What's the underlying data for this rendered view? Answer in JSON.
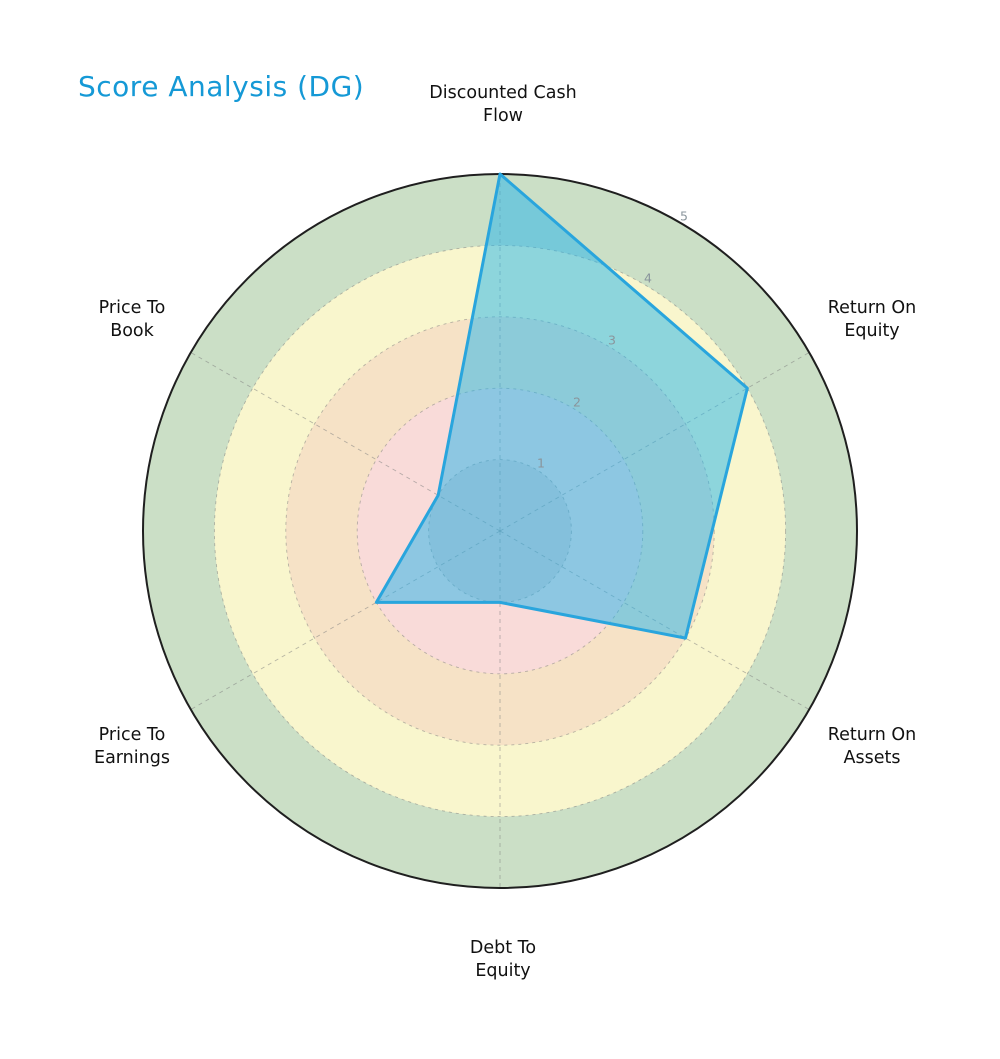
{
  "title": "Score Analysis (DG)",
  "title_color": "#1599d6",
  "chart_data": {
    "type": "radar",
    "series_name": "DG",
    "categories": [
      "Discounted Cash Flow",
      "Return On Equity",
      "Return On Assets",
      "Debt To Equity",
      "Price To Earnings",
      "Price To Book"
    ],
    "series": [
      {
        "name": "DG",
        "values": [
          5,
          4,
          3,
          1,
          2,
          1
        ],
        "stroke": "#29a5dd",
        "fill": "rgba(34,179,236,0.5)"
      }
    ],
    "rlim": [
      0,
      5
    ],
    "rticks": [
      "1",
      "2",
      "3",
      "4",
      "5"
    ],
    "rtick_color": "#8a959c",
    "grid_style": "dashed",
    "grid_color": "rgba(128,128,128,0.55)",
    "outer_ring_color": "#1f1f1f",
    "zones": [
      {
        "from": 0,
        "to": 5,
        "color": "#cbdfc6",
        "meaning": "4-5 band (green)"
      },
      {
        "from": 0,
        "to": 4,
        "color": "#f9f6cd",
        "meaning": "3-4 band (yellow)"
      },
      {
        "from": 0,
        "to": 3,
        "color": "#f6e2c6",
        "meaning": "2-3 band (orange)"
      },
      {
        "from": 0,
        "to": 2,
        "color": "#f9dbd9",
        "meaning": "0-2 band (pink)"
      }
    ],
    "inner_disk": {
      "to": 1,
      "color": "rgba(70,90,110,0.10)"
    },
    "axes_labels": [
      {
        "line1": "Discounted Cash",
        "line2": "Flow"
      },
      {
        "line1": "Return On",
        "line2": "Equity"
      },
      {
        "line1": "Return On",
        "line2": "Assets"
      },
      {
        "line1": "Debt To",
        "line2": "Equity"
      },
      {
        "line1": "Price To",
        "line2": "Earnings"
      },
      {
        "line1": "Price To",
        "line2": "Book"
      }
    ]
  }
}
